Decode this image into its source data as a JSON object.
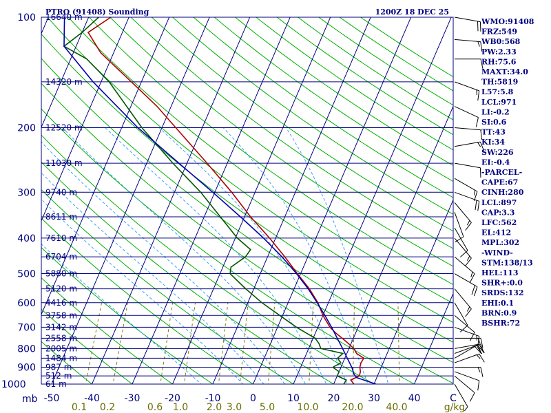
{
  "header": {
    "station": "PTRO (91408) Sounding",
    "time": "1200Z 18 DEC 25"
  },
  "chart_data": {
    "type": "skew-t log-p sounding",
    "pressure_axis": {
      "label": "mb",
      "range": [
        1000,
        100
      ],
      "ticks": [
        100,
        200,
        300,
        400,
        500,
        600,
        700,
        800,
        900,
        1000
      ]
    },
    "height_ticks": [
      {
        "p": 100,
        "label": "16640 m"
      },
      {
        "p": 150,
        "label": "14320 m"
      },
      {
        "p": 200,
        "label": "12520 m"
      },
      {
        "p": 250,
        "label": "11030 m"
      },
      {
        "p": 300,
        "label": "9740 m"
      },
      {
        "p": 350,
        "label": "8611 m"
      },
      {
        "p": 400,
        "label": "7610 m"
      },
      {
        "p": 450,
        "label": "6704 m"
      },
      {
        "p": 500,
        "label": "5880 m"
      },
      {
        "p": 550,
        "label": "5120 m"
      },
      {
        "p": 600,
        "label": "4416 m"
      },
      {
        "p": 650,
        "label": "3758 m"
      },
      {
        "p": 700,
        "label": "3142 m"
      },
      {
        "p": 750,
        "label": "2558 m"
      },
      {
        "p": 800,
        "label": "2005 m"
      },
      {
        "p": 850,
        "label": "1484 m"
      },
      {
        "p": 900,
        "label": "987 m"
      },
      {
        "p": 950,
        "label": "512 m"
      },
      {
        "p": 1000,
        "label": "61 m"
      }
    ],
    "temperature_axis": {
      "unit": "C",
      "ticks": [
        -50,
        -40,
        -30,
        -20,
        -10,
        0,
        10,
        20,
        30,
        40
      ]
    },
    "mixing_ratio_axis": {
      "unit": "g/kg",
      "ticks": [
        "0.1",
        "0.2",
        "0.6",
        "1.0",
        "2.0",
        "3.0",
        "5.0",
        "10.0",
        "20.0",
        "40.0"
      ]
    },
    "series": [
      {
        "name": "temperature",
        "color": "#b00000",
        "points": [
          [
            1000,
            25.0
          ],
          [
            975,
            23.8
          ],
          [
            950,
            25.5
          ],
          [
            925,
            25.3
          ],
          [
            900,
            24.7
          ],
          [
            875,
            24.5
          ],
          [
            850,
            24.7
          ],
          [
            825,
            22.4
          ],
          [
            800,
            21.2
          ],
          [
            775,
            19.3
          ],
          [
            750,
            17.2
          ],
          [
            725,
            15.0
          ],
          [
            700,
            13.0
          ],
          [
            650,
            10.0
          ],
          [
            600,
            7.4
          ],
          [
            550,
            3.8
          ],
          [
            500,
            -0.8
          ],
          [
            450,
            -5.7
          ],
          [
            400,
            -11.5
          ],
          [
            350,
            -18.5
          ],
          [
            300,
            -25.8
          ],
          [
            250,
            -35.0
          ],
          [
            200,
            -46.6
          ],
          [
            175,
            -53.5
          ],
          [
            150,
            -62.5
          ],
          [
            125,
            -73.2
          ],
          [
            110,
            -78.5
          ],
          [
            100,
            -74.5
          ]
        ]
      },
      {
        "name": "dewpoint",
        "color": "#005500",
        "points": [
          [
            1000,
            22.5
          ],
          [
            975,
            22.7
          ],
          [
            950,
            20.0
          ],
          [
            925,
            20.0
          ],
          [
            900,
            18.0
          ],
          [
            875,
            19.5
          ],
          [
            850,
            18.2
          ],
          [
            825,
            19.0
          ],
          [
            800,
            13.0
          ],
          [
            775,
            12.0
          ],
          [
            750,
            10.5
          ],
          [
            700,
            4.7
          ],
          [
            650,
            -0.7
          ],
          [
            600,
            -6.5
          ],
          [
            550,
            -12.0
          ],
          [
            500,
            -17.5
          ],
          [
            480,
            -18.0
          ],
          [
            450,
            -15.5
          ],
          [
            430,
            -15.0
          ],
          [
            400,
            -19.5
          ],
          [
            350,
            -26.0
          ],
          [
            300,
            -33.5
          ],
          [
            250,
            -43.5
          ],
          [
            200,
            -55.0
          ],
          [
            150,
            -68.0
          ],
          [
            130,
            -76.0
          ],
          [
            120,
            -83.0
          ],
          [
            110,
            -80.0
          ],
          [
            100,
            -77.5
          ]
        ]
      },
      {
        "name": "parcel",
        "color": "#0000b0",
        "points": [
          [
            1000,
            30.5
          ],
          [
            960,
            25.0
          ],
          [
            940,
            24.0
          ],
          [
            900,
            22.7
          ],
          [
            850,
            20.6
          ],
          [
            800,
            18.4
          ],
          [
            750,
            16.0
          ],
          [
            700,
            13.4
          ],
          [
            650,
            10.5
          ],
          [
            600,
            7.2
          ],
          [
            550,
            3.5
          ],
          [
            500,
            -1.0
          ],
          [
            450,
            -6.4
          ],
          [
            400,
            -13.0
          ],
          [
            350,
            -21.0
          ],
          [
            300,
            -30.5
          ],
          [
            250,
            -42.0
          ],
          [
            200,
            -56.0
          ],
          [
            150,
            -72.0
          ],
          [
            120,
            -83.0
          ],
          [
            100,
            -86.0
          ]
        ]
      }
    ],
    "wind_barbs": [
      {
        "p": 100,
        "dir": 100,
        "spd": 20
      },
      {
        "p": 115,
        "dir": 95,
        "spd": 15
      },
      {
        "p": 130,
        "dir": 90,
        "spd": 10
      },
      {
        "p": 150,
        "dir": 110,
        "spd": 15
      },
      {
        "p": 175,
        "dir": 115,
        "spd": 10
      },
      {
        "p": 200,
        "dir": 95,
        "spd": 10
      },
      {
        "p": 225,
        "dir": 80,
        "spd": 15
      },
      {
        "p": 250,
        "dir": 100,
        "spd": 10
      },
      {
        "p": 275,
        "dir": 120,
        "spd": 15
      },
      {
        "p": 300,
        "dir": 110,
        "spd": 20
      },
      {
        "p": 320,
        "dir": 140,
        "spd": 15
      },
      {
        "p": 340,
        "dir": 160,
        "spd": 10
      },
      {
        "p": 375,
        "dir": 150,
        "spd": 10
      },
      {
        "p": 400,
        "dir": 140,
        "spd": 15
      },
      {
        "p": 450,
        "dir": 130,
        "spd": 15
      },
      {
        "p": 500,
        "dir": 120,
        "spd": 20
      },
      {
        "p": 550,
        "dir": 140,
        "spd": 15
      },
      {
        "p": 600,
        "dir": 150,
        "spd": 10
      },
      {
        "p": 650,
        "dir": 130,
        "spd": 10
      },
      {
        "p": 700,
        "dir": 110,
        "spd": 15
      },
      {
        "p": 750,
        "dir": 90,
        "spd": 15
      },
      {
        "p": 800,
        "dir": 80,
        "spd": 20
      },
      {
        "p": 825,
        "dir": 70,
        "spd": 20
      },
      {
        "p": 850,
        "dir": 60,
        "spd": 20
      },
      {
        "p": 875,
        "dir": 70,
        "spd": 15
      },
      {
        "p": 900,
        "dir": 90,
        "spd": 15
      },
      {
        "p": 925,
        "dir": 110,
        "spd": 10
      },
      {
        "p": 950,
        "dir": 130,
        "spd": 10
      },
      {
        "p": 1000,
        "dir": 150,
        "spd": 5
      }
    ],
    "indices": [
      "WMO:91408",
      "FRZ:549",
      "WB0:568",
      "PW:2.33",
      "RH:75.6",
      "MAXT:34.0",
      "TH:5819",
      "L57:5.8",
      "LCL:971",
      "LI:-0.2",
      "SI:0.6",
      "TT:43",
      "KI:34",
      "SW:226",
      "EI:-0.4",
      "-PARCEL-",
      "CAPE:67",
      "CINH:280",
      "LCL:897",
      "CAP:3.3",
      "LFC:562",
      "EL:412",
      "MPL:302",
      "-WIND-",
      "STM:138/13",
      "HEL:113",
      "SHR+:0.0",
      "SRDS:132",
      "EHI:0.1",
      "BRN:0.9",
      "BSHR:72"
    ],
    "colors": {
      "background": "#ffffff",
      "isobar": "#00007f",
      "isotherm": "#00007f",
      "dry_adiabat": "#00b000",
      "moist_adiabat": "#3aa0ff",
      "mixing_ratio": "#7f7f00",
      "frame": "#00007f",
      "text": "#00007f"
    }
  }
}
